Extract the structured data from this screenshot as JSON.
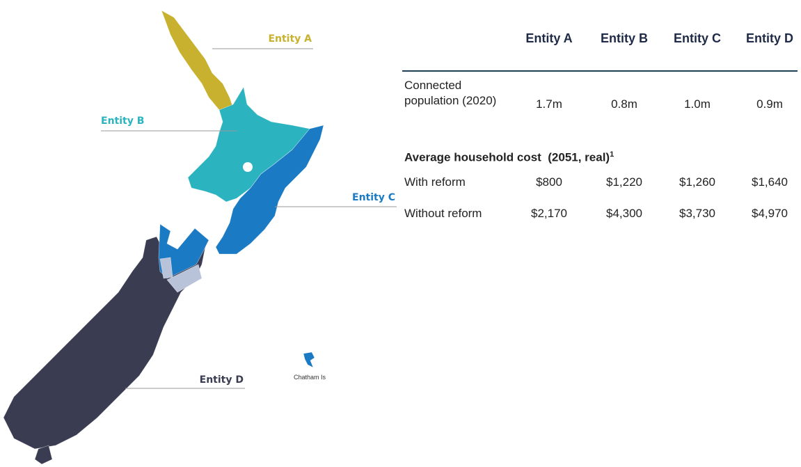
{
  "map": {
    "labels": [
      "Entity A",
      "Entity B",
      "Entity C",
      "Entity D"
    ],
    "note": "Chatham Is"
  },
  "table": {
    "headers": [
      "Entity A",
      "Entity B",
      "Entity C",
      "Entity D"
    ],
    "population": {
      "label": "Connected population (2020)",
      "values": [
        "1.7m",
        "0.8m",
        "1.0m",
        "0.9m"
      ]
    },
    "section": {
      "title": "Average household cost  (2051, real)",
      "footnote_mark": "1"
    },
    "rows": [
      {
        "label": "With reform",
        "values": [
          "$800",
          "$1,220",
          "$1,260",
          "$1,640"
        ]
      },
      {
        "label": "Without reform",
        "values": [
          "$2,170",
          "$4,300",
          "$3,730",
          "$4,970"
        ]
      }
    ]
  }
}
